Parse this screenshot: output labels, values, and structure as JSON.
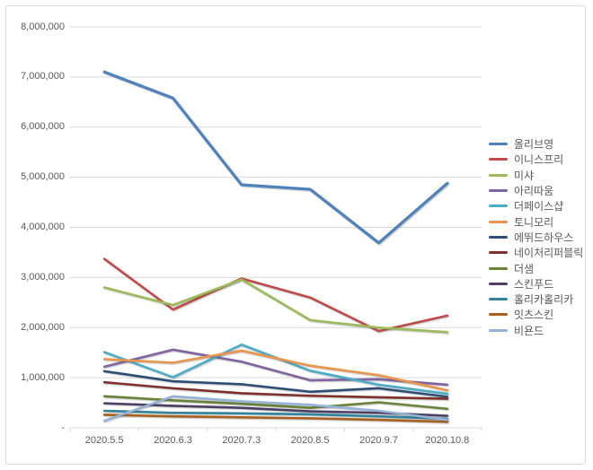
{
  "figure": {
    "background": "#ffffff",
    "border_color": "#d9d9d9"
  },
  "axis": {
    "text_color": "#595959",
    "gridline_color": "#d9d9d9",
    "y_tick_labels": [
      "-",
      "1,000,000",
      "2,000,000",
      "3,000,000",
      "4,000,000",
      "5,000,000",
      "6,000,000",
      "7,000,000",
      "8,000,000"
    ]
  },
  "chart_data": {
    "type": "line",
    "title": "",
    "xlabel": "",
    "ylabel": "",
    "ylim": [
      0,
      8000000
    ],
    "grid": "horizontal",
    "legend_position": "right",
    "categories": [
      "2020.5.5",
      "2020.6.3",
      "2020.7.3",
      "2020.8.5",
      "2020.9.7",
      "2020.10.8"
    ],
    "series": [
      {
        "name": "올리브영",
        "color": "#4f81bd",
        "values": [
          7100000,
          6580000,
          4850000,
          4760000,
          3690000,
          4880000
        ]
      },
      {
        "name": "이니스프리",
        "color": "#be4b48",
        "values": [
          3370000,
          2360000,
          2980000,
          2600000,
          1930000,
          2240000
        ]
      },
      {
        "name": "미샤",
        "color": "#9bbb59",
        "values": [
          2800000,
          2450000,
          2960000,
          2150000,
          2000000,
          1910000
        ]
      },
      {
        "name": "아리따움",
        "color": "#8064a2",
        "values": [
          1220000,
          1560000,
          1320000,
          950000,
          970000,
          860000
        ]
      },
      {
        "name": "더페이스샵",
        "color": "#4bacc6",
        "values": [
          1510000,
          1010000,
          1660000,
          1140000,
          860000,
          680000
        ]
      },
      {
        "name": "토니모리",
        "color": "#e9954c",
        "values": [
          1370000,
          1300000,
          1540000,
          1240000,
          1050000,
          750000
        ]
      },
      {
        "name": "에뛰드하우스",
        "color": "#2c4d75",
        "values": [
          1130000,
          930000,
          870000,
          720000,
          790000,
          620000
        ]
      },
      {
        "name": "네이처리퍼블릭",
        "color": "#7d302c",
        "values": [
          910000,
          790000,
          690000,
          640000,
          610000,
          580000
        ]
      },
      {
        "name": "더샘",
        "color": "#6b8239",
        "values": [
          630000,
          550000,
          480000,
          400000,
          510000,
          380000
        ]
      },
      {
        "name": "스킨푸드",
        "color": "#4d3f64",
        "values": [
          490000,
          440000,
          400000,
          330000,
          300000,
          240000
        ]
      },
      {
        "name": "홀리카홀리카",
        "color": "#31849b",
        "values": [
          340000,
          300000,
          290000,
          270000,
          230000,
          180000
        ]
      },
      {
        "name": "잇츠스킨",
        "color": "#a8601f",
        "values": [
          260000,
          230000,
          210000,
          190000,
          160000,
          120000
        ]
      },
      {
        "name": "비욘드",
        "color": "#95b3d7",
        "values": [
          140000,
          630000,
          530000,
          460000,
          340000,
          160000
        ]
      }
    ]
  }
}
